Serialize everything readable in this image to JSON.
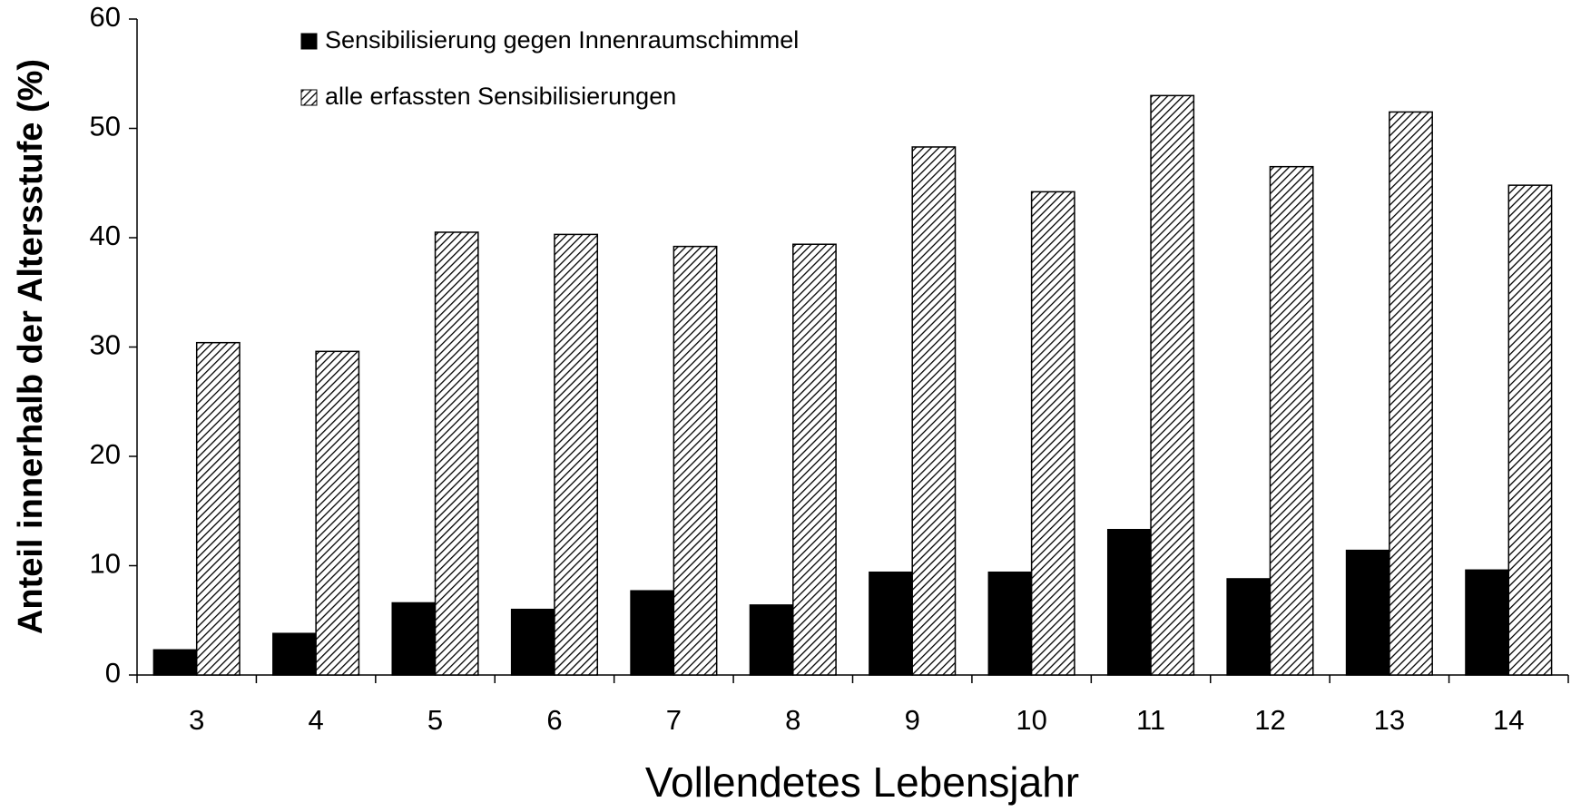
{
  "chart_data": {
    "type": "bar",
    "x_label": "Vollendetes Lebensjahr",
    "y_label": "Anteil innerhalb der Altersstufe (%)",
    "categories": [
      "3",
      "4",
      "5",
      "6",
      "7",
      "8",
      "9",
      "10",
      "11",
      "12",
      "13",
      "14"
    ],
    "series": [
      {
        "name": "Sensibilisierung gegen Innenraumschimmel",
        "color": "#000000",
        "hatch": false,
        "values": [
          2.3,
          3.8,
          6.6,
          6.0,
          7.7,
          6.4,
          9.4,
          9.4,
          13.3,
          8.8,
          11.4,
          9.6
        ]
      },
      {
        "name": "alle erfassten Sensibilisierungen",
        "color": "#ffffff",
        "hatch": true,
        "values": [
          30.4,
          29.6,
          40.5,
          40.3,
          39.2,
          39.4,
          48.3,
          44.2,
          53.0,
          46.5,
          51.5,
          44.8
        ]
      }
    ],
    "ylim": [
      0,
      60
    ],
    "yticks": [
      0,
      10,
      20,
      30,
      40,
      50,
      60
    ],
    "grid": false,
    "legend": "top-left"
  }
}
